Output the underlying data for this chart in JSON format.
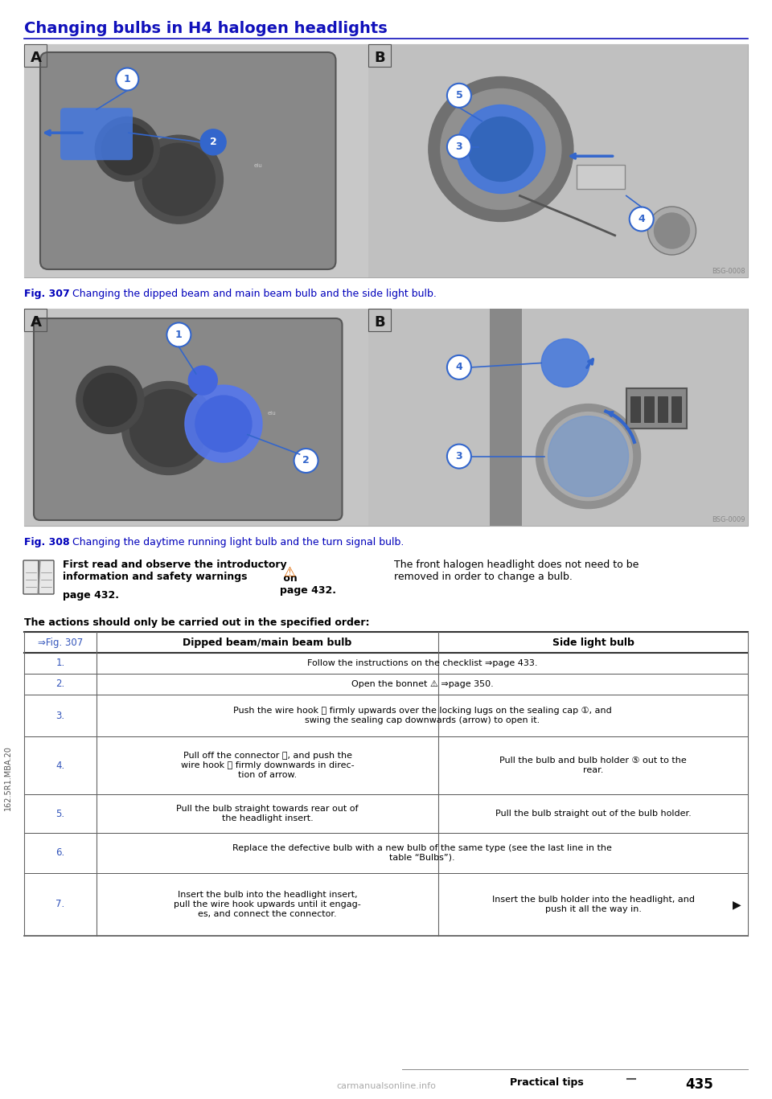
{
  "title": "Changing bulbs in H4 halogen headlights",
  "title_color": "#1111BB",
  "title_fontsize": 14,
  "fig307_caption_bold": "Fig. 307",
  "fig307_caption_rest": "  Changing the dipped beam and main beam bulb and the side light bulb.",
  "fig308_caption_bold": "Fig. 308",
  "fig308_caption_rest": "  Changing the daytime running light bulb and the turn signal bulb.",
  "note_text1_bold": "First read and observe the introductory\ninformation and safety warnings",
  "note_text1_end": " on\npage 432.",
  "note_text2": "The front halogen headlight does not need to be\nremoved in order to change a bulb.",
  "table_header_title": "The actions should only be carried out in the specified order:",
  "table_col0": "⇒Fig. 307",
  "table_col1": "Dipped beam/main beam bulb",
  "table_col2": "Side light bulb",
  "table_rows": [
    {
      "step": "1.",
      "col1": "Follow the instructions on the checklist ⇒page 433.",
      "col2": null
    },
    {
      "step": "2.",
      "col1": "Open the bonnet ⚠ ⇒page 350.",
      "col2": null
    },
    {
      "step": "3.",
      "col1": "Push the wire hook Ⓒ firmly upwards over the locking lugs on the sealing cap ①, and\nswing the sealing cap downwards (arrow) to open it.",
      "col2": null
    },
    {
      "step": "4.",
      "col1": "Pull off the connector Ⓓ, and push the\nwire hook Ⓔ firmly downwards in direc-\ntion of arrow.",
      "col2": "Pull the bulb and bulb holder ⑤ out to the\nrear."
    },
    {
      "step": "5.",
      "col1": "Pull the bulb straight towards rear out of\nthe headlight insert.",
      "col2": "Pull the bulb straight out of the bulb holder."
    },
    {
      "step": "6.",
      "col1": "Replace the defective bulb with a new bulb of the same type (see the last line in the\ntable “Bulbs”).",
      "col2": null
    },
    {
      "step": "7.",
      "col1": "Insert the bulb into the headlight insert,\npull the wire hook upwards until it engag-\nes, and connect the connector.",
      "col2": "Insert the bulb holder into the headlight, and\npush it all the way in."
    }
  ],
  "page_label": "Practical tips",
  "page_number": "435",
  "watermark": "carmanualsonline.info",
  "sidebar_text": "162.5R1.MBA.20",
  "bg_color": "#ffffff",
  "text_color": "#000000",
  "blue_color": "#1111BB",
  "caption_color": "#0000BB",
  "step_color": "#3355BB",
  "circle_color": "#3366CC",
  "img_bg": "#b8b8b8",
  "img_dark": "#606060",
  "img_darker": "#404040",
  "img_mid": "#909090"
}
